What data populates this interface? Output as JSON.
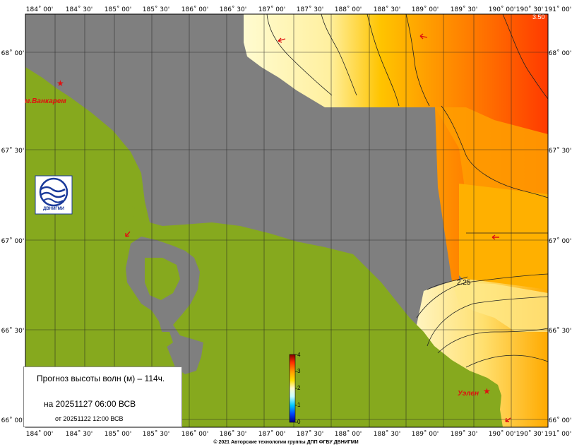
{
  "map": {
    "lon_ticks": [
      "184˚ 00'",
      "184˚ 30'",
      "185˚ 00'",
      "185˚ 30'",
      "186˚ 00'",
      "186˚ 30'",
      "187˚ 00'",
      "187˚ 30'",
      "188˚ 00'",
      "188˚ 30'",
      "189˚ 00'",
      "189˚ 30'",
      "190˚ 00'",
      "190˚ 30'",
      "191˚ 00'"
    ],
    "lat_ticks": [
      "68˚ 00'",
      "67˚ 30'",
      "67˚ 00'",
      "66˚ 30'",
      "66˚ 00'"
    ],
    "places": {
      "vankarem": "м.Ванкарем",
      "uelen": "Уэлен"
    },
    "contour_labels": [
      "2.25",
      "3.50"
    ],
    "logo_text": "ДВНИГМИ",
    "colors": {
      "land": "#86a91e",
      "nodata": "#7f7f7f",
      "wave_low": "#fff9c4",
      "wave_high": "#ff3a00",
      "marker": "#e01010"
    }
  },
  "colorbar": {
    "ticks": [
      "0",
      "1",
      "2",
      "3",
      "4"
    ],
    "min": 0,
    "max": 4
  },
  "info": {
    "title": "Прогноз высоты волн (м) – 114ч.",
    "date": "на 20251127 06:00 ВСВ",
    "issued": "от 20251122 12:00 ВСВ"
  },
  "copyright": "© 2021 Авторские технологии группы ДПП ФГБУ ДВНИГМИ"
}
